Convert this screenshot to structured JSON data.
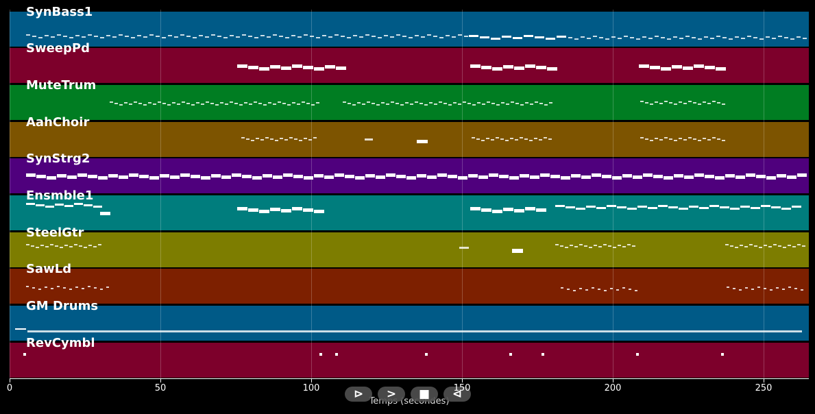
{
  "tracks": [
    {
      "name": "SynBass1",
      "color": "#005a87"
    },
    {
      "name": "SweepPd",
      "color": "#7d002b"
    },
    {
      "name": "MuteTrum",
      "color": "#007d22"
    },
    {
      "name": "AahChoir",
      "color": "#7d5400"
    },
    {
      "name": "SynStrg2",
      "color": "#4f007d"
    },
    {
      "name": "Ensmble1",
      "color": "#007d7d"
    },
    {
      "name": "SteelGtr",
      "color": "#7d7d00"
    },
    {
      "name": "SawLd",
      "color": "#7d2000"
    },
    {
      "name": "GM Drums",
      "color": "#005a87"
    },
    {
      "name": "RevCymbl",
      "color": "#7d002b"
    }
  ],
  "axis": {
    "xlabel": "Temps (secondes)",
    "ticks": [
      "0",
      "50",
      "100",
      "150",
      "200",
      "250"
    ],
    "xlim": [
      0,
      265
    ]
  },
  "controls": [
    {
      "name": "play-button",
      "glyph": "⊳"
    },
    {
      "name": "forward-button",
      "glyph": ">"
    },
    {
      "name": "stop-button",
      "glyph": "■"
    },
    {
      "name": "rewind-button",
      "glyph": "⊲"
    }
  ]
}
